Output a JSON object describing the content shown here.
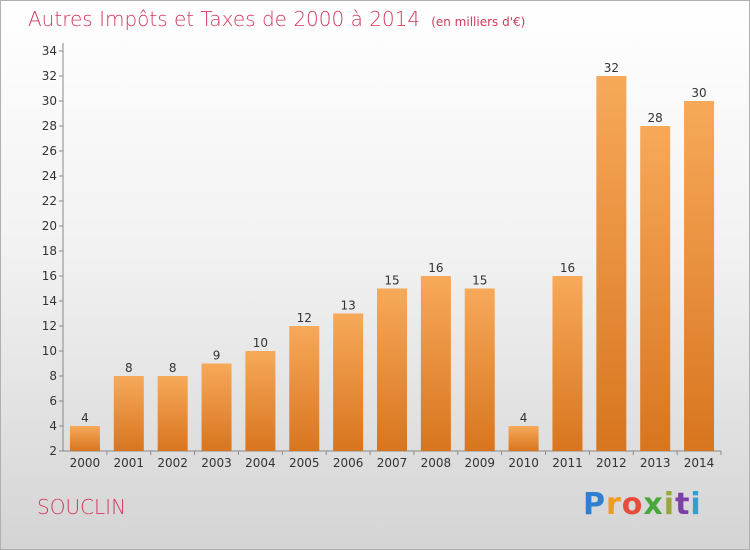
{
  "title": "Autres Impôts et Taxes de 2000 à 2014",
  "unit": "(en milliers d'€)",
  "place": "SOUCLIN",
  "logo": "Proxiti",
  "colors": {
    "title": "#d2395b",
    "bar_light": "#f7a95a",
    "bar_dark": "#d8751f"
  },
  "chart_data": {
    "type": "bar",
    "categories": [
      "2000",
      "2001",
      "2002",
      "2003",
      "2004",
      "2005",
      "2006",
      "2007",
      "2008",
      "2009",
      "2010",
      "2011",
      "2012",
      "2013",
      "2014"
    ],
    "values": [
      4,
      8,
      8,
      9,
      10,
      12,
      13,
      15,
      16,
      15,
      4,
      16,
      32,
      28,
      30
    ],
    "ylim": [
      2,
      34
    ],
    "yticks": [
      2,
      4,
      6,
      8,
      10,
      12,
      14,
      16,
      18,
      20,
      22,
      24,
      26,
      28,
      30,
      32,
      34
    ],
    "grid": false
  }
}
